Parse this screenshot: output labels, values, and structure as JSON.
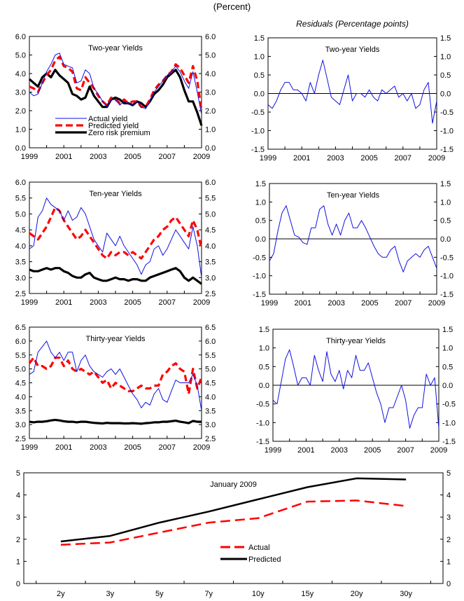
{
  "header": {
    "title": "(Percent)",
    "residuals_subtitle": "Residuals (Percentage points)"
  },
  "chart_data": [
    {
      "id": "two-year-yields",
      "type": "line",
      "title": "Two-year Yields",
      "xlabel": "",
      "ylabel": "Percent",
      "xlim": [
        1999,
        2009
      ],
      "ylim": [
        0,
        6
      ],
      "yticks": [
        "0.0",
        "1.0",
        "2.0",
        "3.0",
        "4.0",
        "5.0",
        "6.0"
      ],
      "xticks": [
        "1999",
        "2001",
        "2003",
        "2005",
        "2007",
        "2009"
      ],
      "legend": [
        "Actual yield",
        "Predicted yield",
        "Zero risk premium"
      ],
      "legend_position": "bottom-left",
      "x": [
        1999.0,
        1999.25,
        1999.5,
        1999.75,
        2000.0,
        2000.25,
        2000.5,
        2000.75,
        2001.0,
        2001.25,
        2001.5,
        2001.75,
        2002.0,
        2002.25,
        2002.5,
        2002.75,
        2003.0,
        2003.25,
        2003.5,
        2003.75,
        2004.0,
        2004.25,
        2004.5,
        2004.75,
        2005.0,
        2005.25,
        2005.5,
        2005.75,
        2006.0,
        2006.25,
        2006.5,
        2006.75,
        2007.0,
        2007.25,
        2007.5,
        2007.75,
        2008.0,
        2008.25,
        2008.5,
        2008.75,
        2009.0
      ],
      "series": [
        {
          "name": "Actual yield",
          "color": "#1010e0",
          "style": "solid",
          "values": [
            3.0,
            2.8,
            2.9,
            3.5,
            4.1,
            4.5,
            5.0,
            5.1,
            4.5,
            4.4,
            4.3,
            3.5,
            3.6,
            4.2,
            4.0,
            3.2,
            2.9,
            2.5,
            2.2,
            2.6,
            2.6,
            2.3,
            2.5,
            2.4,
            2.3,
            2.5,
            2.2,
            2.1,
            2.5,
            3.0,
            3.3,
            3.6,
            3.9,
            4.1,
            4.4,
            4.1,
            3.6,
            3.2,
            4.1,
            3.0,
            1.8
          ]
        },
        {
          "name": "Predicted yield",
          "color": "#ff0000",
          "style": "dashed",
          "values": [
            3.3,
            3.2,
            3.0,
            3.5,
            3.9,
            4.2,
            4.7,
            4.9,
            4.4,
            4.3,
            4.1,
            3.2,
            3.1,
            3.8,
            3.5,
            3.2,
            2.8,
            2.5,
            2.3,
            2.7,
            2.6,
            2.4,
            2.6,
            2.4,
            2.5,
            2.5,
            2.2,
            2.2,
            2.6,
            3.1,
            3.4,
            3.6,
            3.9,
            4.1,
            4.5,
            4.3,
            3.9,
            3.5,
            4.4,
            3.6,
            2.0
          ]
        },
        {
          "name": "Zero risk premium",
          "color": "#000000",
          "style": "solid-thick",
          "values": [
            3.7,
            3.5,
            3.3,
            3.8,
            4.0,
            3.8,
            4.2,
            3.9,
            3.7,
            3.5,
            2.9,
            2.8,
            2.6,
            2.7,
            3.3,
            2.8,
            2.5,
            2.2,
            2.2,
            2.6,
            2.7,
            2.6,
            2.4,
            2.4,
            2.3,
            2.5,
            2.4,
            2.2,
            2.5,
            2.9,
            3.1,
            3.4,
            3.8,
            4.0,
            4.2,
            3.8,
            3.1,
            2.5,
            2.5,
            1.9,
            1.2
          ]
        }
      ]
    },
    {
      "id": "two-year-residuals",
      "type": "line",
      "title": "Two-year Yields",
      "xlim": [
        1999,
        2009
      ],
      "ylim": [
        -1.5,
        1.5
      ],
      "yticks": [
        "-1.5",
        "-1.0",
        "-0.5",
        "0.0",
        "0.5",
        "1.0",
        "1.5"
      ],
      "xticks": [
        "1999",
        "2001",
        "2003",
        "2005",
        "2007",
        "2009"
      ],
      "x": [
        1999.0,
        1999.25,
        1999.5,
        1999.75,
        2000.0,
        2000.25,
        2000.5,
        2000.75,
        2001.0,
        2001.25,
        2001.5,
        2001.75,
        2002.0,
        2002.25,
        2002.5,
        2002.75,
        2003.0,
        2003.25,
        2003.5,
        2003.75,
        2004.0,
        2004.25,
        2004.5,
        2004.75,
        2005.0,
        2005.25,
        2005.5,
        2005.75,
        2006.0,
        2006.25,
        2006.5,
        2006.75,
        2007.0,
        2007.25,
        2007.5,
        2007.75,
        2008.0,
        2008.25,
        2008.5,
        2008.75,
        2009.0
      ],
      "series": [
        {
          "name": "Residual",
          "color": "#1010e0",
          "style": "solid",
          "values": [
            -0.3,
            -0.4,
            -0.2,
            0.1,
            0.3,
            0.3,
            0.1,
            0.1,
            0.0,
            -0.2,
            0.3,
            0.0,
            0.5,
            0.9,
            0.4,
            -0.1,
            -0.2,
            -0.3,
            0.1,
            0.5,
            -0.2,
            0.0,
            0.0,
            -0.1,
            0.1,
            -0.1,
            -0.2,
            0.1,
            0.0,
            0.1,
            0.2,
            -0.1,
            0.0,
            -0.2,
            0.0,
            -0.4,
            -0.3,
            0.1,
            0.3,
            -0.8,
            -0.2
          ]
        }
      ]
    },
    {
      "id": "ten-year-yields",
      "type": "line",
      "title": "Ten-year Yields",
      "xlim": [
        1999,
        2009
      ],
      "ylim": [
        2.5,
        6.0
      ],
      "yticks": [
        "2.5",
        "3.0",
        "3.5",
        "4.0",
        "4.5",
        "5.0",
        "5.5",
        "6.0"
      ],
      "xticks": [
        "1999",
        "2001",
        "2003",
        "2005",
        "2007",
        "2009"
      ],
      "x": [
        1999.0,
        1999.25,
        1999.5,
        1999.75,
        2000.0,
        2000.25,
        2000.5,
        2000.75,
        2001.0,
        2001.25,
        2001.5,
        2001.75,
        2002.0,
        2002.25,
        2002.5,
        2002.75,
        2003.0,
        2003.25,
        2003.5,
        2003.75,
        2004.0,
        2004.25,
        2004.5,
        2004.75,
        2005.0,
        2005.25,
        2005.5,
        2005.75,
        2006.0,
        2006.25,
        2006.5,
        2006.75,
        2007.0,
        2007.25,
        2007.5,
        2007.75,
        2008.0,
        2008.25,
        2008.5,
        2008.75,
        2009.0
      ],
      "series": [
        {
          "name": "Actual yield",
          "color": "#1010e0",
          "style": "solid",
          "values": [
            3.9,
            4.0,
            4.9,
            5.1,
            5.5,
            5.3,
            5.2,
            5.1,
            4.8,
            5.1,
            4.8,
            4.9,
            5.2,
            5.0,
            4.6,
            4.2,
            4.0,
            3.8,
            4.4,
            4.2,
            4.0,
            4.3,
            4.0,
            3.8,
            3.6,
            3.4,
            3.1,
            3.4,
            3.5,
            3.9,
            4.0,
            3.7,
            3.9,
            4.2,
            4.5,
            4.3,
            4.1,
            3.9,
            4.6,
            4.0,
            3.0
          ]
        },
        {
          "name": "Predicted yield",
          "color": "#ff0000",
          "style": "dashed",
          "values": [
            4.4,
            4.3,
            4.2,
            4.4,
            4.6,
            4.9,
            5.2,
            5.1,
            4.8,
            4.6,
            4.4,
            4.2,
            4.3,
            4.5,
            4.3,
            4.1,
            3.9,
            3.7,
            3.6,
            3.8,
            3.7,
            3.8,
            3.8,
            3.7,
            3.8,
            3.7,
            3.6,
            3.8,
            4.0,
            4.2,
            4.3,
            4.5,
            4.6,
            4.8,
            4.9,
            4.7,
            4.5,
            4.3,
            4.8,
            4.5,
            3.9
          ]
        },
        {
          "name": "Zero risk premium",
          "color": "#000000",
          "style": "solid-thick",
          "values": [
            3.25,
            3.2,
            3.2,
            3.25,
            3.3,
            3.25,
            3.3,
            3.3,
            3.2,
            3.15,
            3.05,
            3.0,
            3.0,
            3.1,
            3.15,
            3.0,
            2.95,
            2.9,
            2.9,
            2.95,
            3.0,
            2.95,
            2.95,
            2.9,
            2.95,
            2.95,
            2.9,
            2.9,
            3.0,
            3.05,
            3.1,
            3.15,
            3.2,
            3.25,
            3.3,
            3.2,
            3.0,
            2.9,
            3.0,
            2.9,
            2.8
          ]
        }
      ]
    },
    {
      "id": "ten-year-residuals",
      "type": "line",
      "title": "Ten-year Yields",
      "xlim": [
        1999,
        2009
      ],
      "ylim": [
        -1.5,
        1.5
      ],
      "yticks": [
        "-1.5",
        "-1.0",
        "-0.5",
        "0.0",
        "0.5",
        "1.0",
        "1.5"
      ],
      "xticks": [
        "1999",
        "2001",
        "2003",
        "2005",
        "2007",
        "2009"
      ],
      "x": [
        1999.0,
        1999.25,
        1999.5,
        1999.75,
        2000.0,
        2000.25,
        2000.5,
        2000.75,
        2001.0,
        2001.25,
        2001.5,
        2001.75,
        2002.0,
        2002.25,
        2002.5,
        2002.75,
        2003.0,
        2003.25,
        2003.5,
        2003.75,
        2004.0,
        2004.25,
        2004.5,
        2004.75,
        2005.0,
        2005.25,
        2005.5,
        2005.75,
        2006.0,
        2006.25,
        2006.5,
        2006.75,
        2007.0,
        2007.25,
        2007.5,
        2007.75,
        2008.0,
        2008.25,
        2008.5,
        2008.75,
        2009.0
      ],
      "series": [
        {
          "name": "Residual",
          "color": "#1010e0",
          "style": "solid",
          "values": [
            -0.6,
            -0.4,
            0.2,
            0.7,
            0.9,
            0.5,
            0.1,
            0.05,
            -0.1,
            -0.15,
            0.3,
            0.3,
            0.8,
            0.9,
            0.4,
            0.1,
            0.4,
            0.1,
            0.5,
            0.7,
            0.3,
            0.3,
            0.5,
            0.3,
            0.05,
            -0.2,
            -0.4,
            -0.5,
            -0.5,
            -0.3,
            -0.2,
            -0.6,
            -0.9,
            -0.6,
            -0.5,
            -0.4,
            -0.5,
            -0.3,
            -0.2,
            -0.5,
            -0.8
          ]
        }
      ]
    },
    {
      "id": "thirty-year-yields",
      "type": "line",
      "title": "Thirty-year Yields",
      "xlim": [
        1999,
        2009
      ],
      "ylim": [
        2.5,
        6.5
      ],
      "yticks": [
        "2.5",
        "3.0",
        "3.5",
        "4.0",
        "4.5",
        "5.0",
        "5.5",
        "6.0",
        "6.5"
      ],
      "xticks": [
        "1999",
        "2001",
        "2003",
        "2005",
        "2007",
        "2009"
      ],
      "x": [
        1999.0,
        1999.25,
        1999.5,
        1999.75,
        2000.0,
        2000.25,
        2000.5,
        2000.75,
        2001.0,
        2001.25,
        2001.5,
        2001.75,
        2002.0,
        2002.25,
        2002.5,
        2002.75,
        2003.0,
        2003.25,
        2003.5,
        2003.75,
        2004.0,
        2004.25,
        2004.5,
        2004.75,
        2005.0,
        2005.25,
        2005.5,
        2005.75,
        2006.0,
        2006.25,
        2006.5,
        2006.75,
        2007.0,
        2007.25,
        2007.5,
        2007.75,
        2008.0,
        2008.25,
        2008.5,
        2008.75,
        2009.0
      ],
      "series": [
        {
          "name": "Actual yield",
          "color": "#1010e0",
          "style": "solid",
          "values": [
            4.8,
            4.9,
            5.6,
            5.8,
            6.0,
            5.6,
            5.4,
            5.6,
            5.3,
            5.6,
            5.6,
            4.9,
            5.3,
            5.5,
            5.1,
            4.9,
            4.8,
            4.7,
            4.9,
            5.0,
            4.8,
            5.0,
            4.7,
            4.4,
            4.1,
            3.9,
            3.6,
            3.8,
            3.7,
            4.1,
            4.3,
            3.9,
            3.8,
            4.2,
            4.6,
            4.5,
            4.5,
            4.5,
            4.8,
            4.4,
            3.5
          ]
        },
        {
          "name": "Predicted yield",
          "color": "#ff0000",
          "style": "dashed",
          "values": [
            5.2,
            5.4,
            5.1,
            5.1,
            5.0,
            5.1,
            5.4,
            5.4,
            5.1,
            5.3,
            5.0,
            4.9,
            5.0,
            4.9,
            4.8,
            4.9,
            4.7,
            4.5,
            4.6,
            4.3,
            4.5,
            4.4,
            4.3,
            4.2,
            4.2,
            4.3,
            4.4,
            4.3,
            4.3,
            4.4,
            4.4,
            4.8,
            4.9,
            5.1,
            5.2,
            5.0,
            4.9,
            4.1,
            5.0,
            4.3,
            4.7
          ]
        },
        {
          "name": "Zero risk premium",
          "color": "#000000",
          "style": "solid-thick",
          "values": [
            3.1,
            3.08,
            3.1,
            3.1,
            3.12,
            3.15,
            3.17,
            3.15,
            3.12,
            3.1,
            3.1,
            3.08,
            3.1,
            3.1,
            3.08,
            3.06,
            3.05,
            3.04,
            3.06,
            3.05,
            3.05,
            3.05,
            3.04,
            3.04,
            3.05,
            3.04,
            3.03,
            3.05,
            3.06,
            3.08,
            3.08,
            3.1,
            3.1,
            3.12,
            3.14,
            3.1,
            3.08,
            3.05,
            3.13,
            3.1,
            3.1
          ]
        }
      ]
    },
    {
      "id": "thirty-year-residuals",
      "type": "line",
      "title": "Thirty-year Yields",
      "xlim": [
        1999,
        2009
      ],
      "ylim": [
        -1.5,
        1.5
      ],
      "yticks": [
        "-1.5",
        "-1.0",
        "-0.5",
        "0.0",
        "0.5",
        "1.0",
        "1.5"
      ],
      "xticks": [
        "1999",
        "2001",
        "2003",
        "2005",
        "2007",
        "2009"
      ],
      "x": [
        1999.0,
        1999.25,
        1999.5,
        1999.75,
        2000.0,
        2000.25,
        2000.5,
        2000.75,
        2001.0,
        2001.25,
        2001.5,
        2001.75,
        2002.0,
        2002.25,
        2002.5,
        2002.75,
        2003.0,
        2003.25,
        2003.5,
        2003.75,
        2004.0,
        2004.25,
        2004.5,
        2004.75,
        2005.0,
        2005.25,
        2005.5,
        2005.75,
        2006.0,
        2006.25,
        2006.5,
        2006.75,
        2007.0,
        2007.25,
        2007.5,
        2007.75,
        2008.0,
        2008.25,
        2008.5,
        2008.75,
        2009.0
      ],
      "series": [
        {
          "name": "Residual",
          "color": "#1010e0",
          "style": "solid",
          "values": [
            -0.4,
            -0.5,
            0.1,
            0.7,
            0.95,
            0.5,
            0.0,
            0.2,
            0.2,
            0.0,
            0.8,
            0.4,
            0.1,
            0.9,
            0.3,
            0.1,
            0.4,
            -0.1,
            0.4,
            0.2,
            0.8,
            0.4,
            0.4,
            0.6,
            0.2,
            -0.2,
            -0.5,
            -1.0,
            -0.6,
            -0.6,
            -0.3,
            0.0,
            -0.4,
            -1.15,
            -0.8,
            -0.6,
            -0.6,
            0.3,
            0.0,
            0.2,
            -1.15
          ]
        }
      ]
    },
    {
      "id": "january-2009-curve",
      "type": "line",
      "title": "January 2009",
      "xlabel": "",
      "ylabel": "Percent",
      "categories": [
        "2y",
        "3y",
        "5y",
        "7y",
        "10y",
        "15y",
        "20y",
        "30y"
      ],
      "ylim": [
        0,
        5
      ],
      "yticks": [
        "0",
        "1",
        "2",
        "3",
        "4",
        "5"
      ],
      "legend": [
        "Actual",
        "Predicted"
      ],
      "legend_position": "center",
      "series": [
        {
          "name": "Actual",
          "color": "#ff0000",
          "style": "dashed",
          "values": [
            1.75,
            1.85,
            2.3,
            2.75,
            2.95,
            3.7,
            3.75,
            3.5
          ]
        },
        {
          "name": "Predicted",
          "color": "#000000",
          "style": "solid",
          "values": [
            1.9,
            2.15,
            2.75,
            3.25,
            3.8,
            4.35,
            4.75,
            4.7
          ]
        }
      ]
    }
  ]
}
